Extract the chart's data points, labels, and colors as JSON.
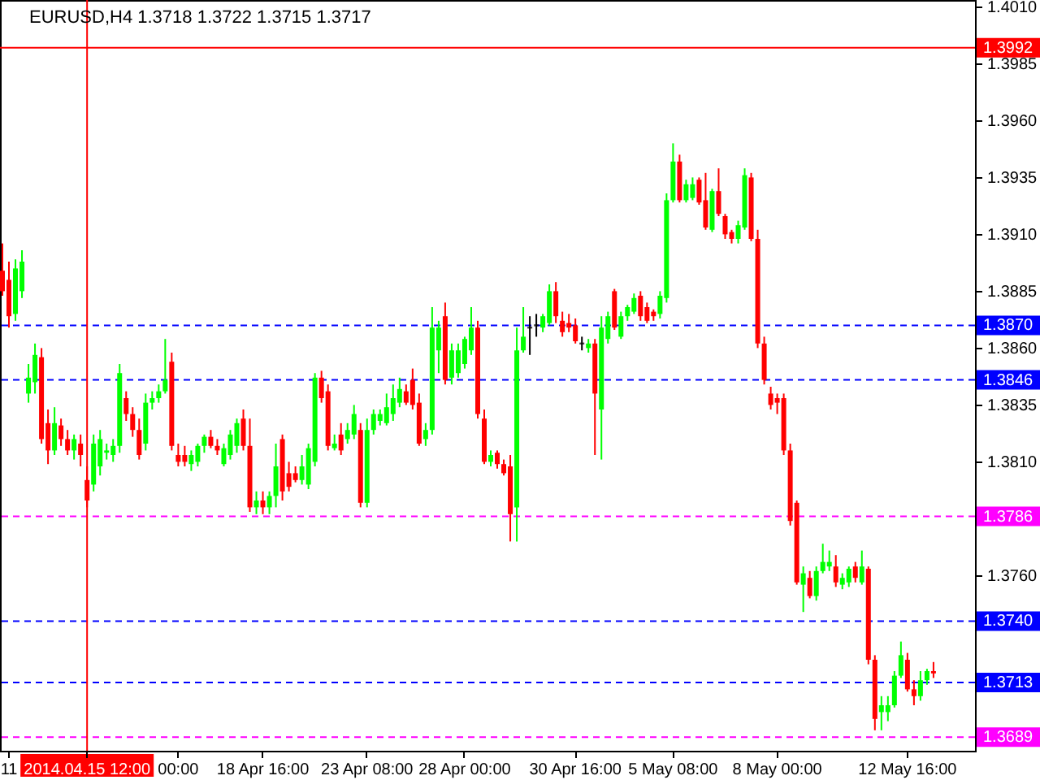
{
  "chart_data": {
    "type": "candlestick",
    "title": "EURUSD,H4  1.3718 1.3722 1.3715 1.3717",
    "categories": [
      null,
      "11",
      null,
      null,
      null,
      null,
      null,
      null,
      null,
      null,
      null,
      null,
      null,
      "2014.04.15 12:00",
      null,
      null,
      null,
      null,
      null,
      null,
      null,
      null,
      null,
      null,
      null,
      null,
      null,
      "00:00",
      null,
      null,
      null,
      null,
      null,
      null,
      null,
      null,
      null,
      null,
      null,
      null,
      "18 Apr 16:00",
      null,
      null,
      null,
      null,
      null,
      null,
      null,
      null,
      null,
      null,
      null,
      null,
      null,
      null,
      null,
      "23 Apr 08:00",
      null,
      null,
      null,
      null,
      null,
      null,
      null,
      null,
      null,
      null,
      null,
      null,
      null,
      null,
      "28 Apr 00:00",
      null,
      null,
      null,
      null,
      null,
      null,
      null,
      null,
      null,
      null,
      null,
      null,
      null,
      null,
      null,
      null,
      "30 Apr 16:00",
      null,
      null,
      null,
      null,
      null,
      null,
      null,
      null,
      null,
      null,
      null,
      null,
      null,
      null,
      "5 May 08:00",
      null,
      null,
      null,
      null,
      null,
      null,
      null,
      null,
      null,
      null,
      null,
      null,
      null,
      null,
      null,
      "8 May 00:00",
      null,
      null,
      null,
      null,
      null,
      null,
      null,
      null,
      null,
      null,
      null,
      null,
      null,
      null,
      null,
      null,
      null,
      null,
      null,
      "12 May 16:00",
      null,
      null,
      null,
      null,
      null,
      null,
      null,
      null,
      null,
      null
    ],
    "ohlc": [
      [
        1.3894,
        1.3906,
        1.3883,
        1.3885
      ],
      [
        1.389,
        1.3898,
        1.3869,
        1.3874
      ],
      [
        1.3875,
        1.3899,
        1.3872,
        1.3895
      ],
      [
        1.3885,
        1.3903,
        1.3882,
        1.3898
      ],
      [
        1.384,
        1.3853,
        1.3836,
        1.3847
      ],
      [
        1.3845,
        1.3862,
        1.384,
        1.3857
      ],
      [
        1.3856,
        1.386,
        1.3818,
        1.382
      ],
      [
        1.3827,
        1.3833,
        1.3809,
        1.3815
      ],
      [
        1.3815,
        1.3834,
        1.3813,
        1.3827
      ],
      [
        1.3826,
        1.3829,
        1.3817,
        1.382
      ],
      [
        1.382,
        1.3824,
        1.3813,
        1.3815
      ],
      [
        1.3815,
        1.3822,
        1.3811,
        1.382
      ],
      [
        1.3818,
        1.3822,
        1.3808,
        1.3813
      ],
      [
        1.3802,
        1.3808,
        1.379,
        1.3793
      ],
      [
        1.38,
        1.3822,
        1.3797,
        1.3818
      ],
      [
        1.3808,
        1.3824,
        1.3804,
        1.382
      ],
      [
        1.3814,
        1.3818,
        1.3811,
        1.3815
      ],
      [
        1.3813,
        1.382,
        1.381,
        1.3817
      ],
      [
        1.3817,
        1.3853,
        1.3814,
        1.3849
      ],
      [
        1.3838,
        1.3841,
        1.3828,
        1.3831
      ],
      [
        1.3831,
        1.3834,
        1.3821,
        1.3824
      ],
      [
        1.3824,
        1.3829,
        1.3811,
        1.3813
      ],
      [
        1.3818,
        1.384,
        1.3815,
        1.3836
      ],
      [
        1.3836,
        1.3841,
        1.3833,
        1.3838
      ],
      [
        1.3838,
        1.3844,
        1.3836,
        1.3841
      ],
      [
        1.3841,
        1.3864,
        1.384,
        1.3846
      ],
      [
        1.3854,
        1.3858,
        1.3815,
        1.3817
      ],
      [
        1.3813,
        1.3818,
        1.3808,
        1.381
      ],
      [
        1.3813,
        1.3817,
        1.3808,
        1.381
      ],
      [
        1.3809,
        1.3815,
        1.3806,
        1.3813
      ],
      [
        1.381,
        1.3818,
        1.3808,
        1.3817
      ],
      [
        1.3817,
        1.3822,
        1.3814,
        1.3821
      ],
      [
        1.3821,
        1.3824,
        1.3816,
        1.3817
      ],
      [
        1.3817,
        1.382,
        1.3813,
        1.3815
      ],
      [
        1.3809,
        1.3818,
        1.3808,
        1.3816
      ],
      [
        1.3813,
        1.3824,
        1.3811,
        1.3822
      ],
      [
        1.3817,
        1.3829,
        1.3814,
        1.3827
      ],
      [
        1.3829,
        1.3833,
        1.3815,
        1.3817
      ],
      [
        1.3817,
        1.3829,
        1.3788,
        1.379
      ],
      [
        1.379,
        1.3797,
        1.3787,
        1.3793
      ],
      [
        1.3793,
        1.3797,
        1.3787,
        1.379
      ],
      [
        1.379,
        1.3797,
        1.3787,
        1.3795
      ],
      [
        1.3795,
        1.3818,
        1.379,
        1.3808
      ],
      [
        1.382,
        1.3822,
        1.3793,
        1.3797
      ],
      [
        1.3805,
        1.381,
        1.3797,
        1.3799
      ],
      [
        1.3805,
        1.3808,
        1.3801,
        1.3802
      ],
      [
        1.3802,
        1.3813,
        1.38,
        1.3808
      ],
      [
        1.38,
        1.3818,
        1.3798,
        1.3816
      ],
      [
        1.381,
        1.3849,
        1.3808,
        1.3847
      ],
      [
        1.3847,
        1.385,
        1.3836,
        1.3838
      ],
      [
        1.3841,
        1.3844,
        1.3815,
        1.3817
      ],
      [
        1.3816,
        1.3822,
        1.3815,
        1.3818
      ],
      [
        1.3822,
        1.3827,
        1.3813,
        1.3815
      ],
      [
        1.382,
        1.3827,
        1.3818,
        1.3824
      ],
      [
        1.3822,
        1.3835,
        1.382,
        1.3831
      ],
      [
        1.3824,
        1.3827,
        1.379,
        1.3792
      ],
      [
        1.3792,
        1.3829,
        1.379,
        1.3824
      ],
      [
        1.3824,
        1.3833,
        1.3822,
        1.3831
      ],
      [
        1.3828,
        1.3833,
        1.3826,
        1.3831
      ],
      [
        1.3827,
        1.384,
        1.3826,
        1.3834
      ],
      [
        1.3831,
        1.3844,
        1.3828,
        1.3838
      ],
      [
        1.3836,
        1.3847,
        1.3834,
        1.3842
      ],
      [
        1.3841,
        1.3844,
        1.3835,
        1.3836
      ],
      [
        1.3846,
        1.3851,
        1.3833,
        1.3835
      ],
      [
        1.3836,
        1.384,
        1.3817,
        1.3818
      ],
      [
        1.382,
        1.3827,
        1.3817,
        1.3824
      ],
      [
        1.3824,
        1.3878,
        1.3822,
        1.3869
      ],
      [
        1.3859,
        1.3872,
        1.3849,
        1.3869
      ],
      [
        1.3874,
        1.388,
        1.3844,
        1.3846
      ],
      [
        1.3847,
        1.3862,
        1.3844,
        1.3859
      ],
      [
        1.3849,
        1.3862,
        1.3847,
        1.3859
      ],
      [
        1.3853,
        1.3865,
        1.3851,
        1.3864
      ],
      [
        1.3859,
        1.3878,
        1.3857,
        1.3869
      ],
      [
        1.3869,
        1.3872,
        1.3829,
        1.3831
      ],
      [
        1.3829,
        1.3833,
        1.3809,
        1.381
      ],
      [
        1.381,
        1.3815,
        1.3808,
        1.3813
      ],
      [
        1.3814,
        1.3815,
        1.3807,
        1.3809
      ],
      [
        1.3809,
        1.3811,
        1.3804,
        1.3805
      ],
      [
        1.3808,
        1.3813,
        1.3775,
        1.3787
      ],
      [
        1.379,
        1.3869,
        1.3775,
        1.3859
      ],
      [
        1.3859,
        1.3878,
        1.3858,
        1.3865
      ],
      [
        1.3869,
        1.3874,
        1.3857,
        1.3869
      ],
      [
        1.387,
        1.3875,
        1.3865,
        1.387
      ],
      [
        1.3869,
        1.3875,
        1.3867,
        1.3874
      ],
      [
        1.3871,
        1.3888,
        1.387,
        1.3885
      ],
      [
        1.3885,
        1.3889,
        1.3871,
        1.3874
      ],
      [
        1.3872,
        1.3876,
        1.3865,
        1.3867
      ],
      [
        1.3871,
        1.3875,
        1.3867,
        1.3869
      ],
      [
        1.387,
        1.3873,
        1.3862,
        1.3863
      ],
      [
        1.3862,
        1.3865,
        1.3859,
        1.3862
      ],
      [
        1.386,
        1.3864,
        1.3858,
        1.3862
      ],
      [
        1.3862,
        1.3864,
        1.3813,
        1.384
      ],
      [
        1.3833,
        1.3874,
        1.3811,
        1.3869
      ],
      [
        1.3864,
        1.3876,
        1.3862,
        1.3874
      ],
      [
        1.3885,
        1.3886,
        1.3868,
        1.3869
      ],
      [
        1.3865,
        1.3876,
        1.3864,
        1.3874
      ],
      [
        1.3874,
        1.3879,
        1.3872,
        1.3878
      ],
      [
        1.3876,
        1.3884,
        1.3875,
        1.3882
      ],
      [
        1.3883,
        1.3885,
        1.3872,
        1.3874
      ],
      [
        1.3878,
        1.388,
        1.3871,
        1.3872
      ],
      [
        1.3876,
        1.3877,
        1.3872,
        1.3874
      ],
      [
        1.3875,
        1.3885,
        1.3873,
        1.3883
      ],
      [
        1.3882,
        1.3928,
        1.388,
        1.3925
      ],
      [
        1.3925,
        1.395,
        1.3924,
        1.3942
      ],
      [
        1.3942,
        1.3945,
        1.3924,
        1.3925
      ],
      [
        1.3925,
        1.3934,
        1.3924,
        1.3932
      ],
      [
        1.3926,
        1.3935,
        1.3925,
        1.3932
      ],
      [
        1.3934,
        1.3935,
        1.3923,
        1.3924
      ],
      [
        1.3925,
        1.3937,
        1.3912,
        1.3913
      ],
      [
        1.3912,
        1.393,
        1.3911,
        1.3929
      ],
      [
        1.3929,
        1.3939,
        1.3918,
        1.3919
      ],
      [
        1.3918,
        1.3919,
        1.3908,
        1.391
      ],
      [
        1.3911,
        1.3912,
        1.3906,
        1.3908
      ],
      [
        1.3908,
        1.3916,
        1.3906,
        1.3914
      ],
      [
        1.3913,
        1.3939,
        1.3912,
        1.3936
      ],
      [
        1.3935,
        1.3937,
        1.3907,
        1.3908
      ],
      [
        1.3908,
        1.3912,
        1.386,
        1.3862
      ],
      [
        1.3862,
        1.3865,
        1.3844,
        1.3846
      ],
      [
        1.384,
        1.3843,
        1.3833,
        1.3835
      ],
      [
        1.3838,
        1.384,
        1.3831,
        1.3836
      ],
      [
        1.3838,
        1.384,
        1.3813,
        1.3815
      ],
      [
        1.3815,
        1.3818,
        1.3782,
        1.3784
      ],
      [
        1.3792,
        1.3793,
        1.3756,
        1.3757
      ],
      [
        1.3756,
        1.3764,
        1.3744,
        1.3761
      ],
      [
        1.3759,
        1.3762,
        1.375,
        1.3751
      ],
      [
        1.3751,
        1.3764,
        1.3749,
        1.3762
      ],
      [
        1.3762,
        1.3774,
        1.3761,
        1.3766
      ],
      [
        1.3764,
        1.3771,
        1.3762,
        1.3766
      ],
      [
        1.3764,
        1.3769,
        1.3755,
        1.3757
      ],
      [
        1.3756,
        1.3761,
        1.3754,
        1.3759
      ],
      [
        1.3757,
        1.3764,
        1.3755,
        1.3763
      ],
      [
        1.3764,
        1.3766,
        1.3757,
        1.3759
      ],
      [
        1.3757,
        1.3771,
        1.3756,
        1.3764
      ],
      [
        1.3763,
        1.3764,
        1.3721,
        1.3723
      ],
      [
        1.3723,
        1.3725,
        1.3692,
        1.3697
      ],
      [
        1.37,
        1.3707,
        1.3692,
        1.3703
      ],
      [
        1.37,
        1.3707,
        1.3696,
        1.3703
      ],
      [
        1.3703,
        1.3718,
        1.3702,
        1.3716
      ],
      [
        1.3716,
        1.3731,
        1.3715,
        1.3725
      ],
      [
        1.3723,
        1.3726,
        1.3709,
        1.371
      ],
      [
        1.371,
        1.3714,
        1.3703,
        1.3707
      ],
      [
        1.3707,
        1.3718,
        1.3705,
        1.3714
      ],
      [
        1.3714,
        1.3719,
        1.3712,
        1.3718
      ],
      [
        1.3718,
        1.3722,
        1.3715,
        1.3717
      ],
      null,
      null,
      null,
      null,
      null,
      null
    ],
    "colors": [
      "#ff0000",
      "#ff0000",
      "#00ff00",
      "#00ff00",
      "#00ff00",
      "#00ff00",
      "#ff0000",
      "#ff0000",
      "#00ff00",
      "#ff0000",
      "#ff0000",
      "#00ff00",
      "#ff0000",
      "#ff0000",
      "#00ff00",
      "#00ff00",
      "#00ff00",
      "#00ff00",
      "#00ff00",
      "#ff0000",
      "#ff0000",
      "#ff0000",
      "#00ff00",
      "#00ff00",
      "#00ff00",
      "#00ff00",
      "#ff0000",
      "#ff0000",
      "#ff0000",
      "#00ff00",
      "#00ff00",
      "#00ff00",
      "#ff0000",
      "#ff0000",
      "#00ff00",
      "#00ff00",
      "#00ff00",
      "#ff0000",
      "#ff0000",
      "#00ff00",
      "#ff0000",
      "#00ff00",
      "#00ff00",
      "#ff0000",
      "#ff0000",
      "#ff0000",
      "#00ff00",
      "#00ff00",
      "#00ff00",
      "#ff0000",
      "#ff0000",
      "#00ff00",
      "#ff0000",
      "#00ff00",
      "#00ff00",
      "#ff0000",
      "#00ff00",
      "#00ff00",
      "#00ff00",
      "#00ff00",
      "#00ff00",
      "#00ff00",
      "#ff0000",
      "#ff0000",
      "#ff0000",
      "#00ff00",
      "#00ff00",
      "#00ff00",
      "#ff0000",
      "#00ff00",
      "#00ff00",
      "#00ff00",
      "#00ff00",
      "#ff0000",
      "#ff0000",
      "#00ff00",
      "#ff0000",
      "#ff0000",
      "#ff0000",
      "#00ff00",
      "#00ff00",
      "#000000",
      "#000000",
      "#00ff00",
      "#00ff00",
      "#ff0000",
      "#ff0000",
      "#ff0000",
      "#ff0000",
      "#000000",
      "#00ff00",
      "#ff0000",
      "#00ff00",
      "#00ff00",
      "#ff0000",
      "#00ff00",
      "#00ff00",
      "#00ff00",
      "#ff0000",
      "#ff0000",
      "#ff0000",
      "#00ff00",
      "#00ff00",
      "#00ff00",
      "#ff0000",
      "#00ff00",
      "#00ff00",
      "#ff0000",
      "#ff0000",
      "#00ff00",
      "#ff0000",
      "#ff0000",
      "#ff0000",
      "#00ff00",
      "#00ff00",
      "#ff0000",
      "#ff0000",
      "#ff0000",
      "#ff0000",
      "#ff0000",
      "#ff0000",
      "#ff0000",
      "#ff0000",
      "#00ff00",
      "#ff0000",
      "#00ff00",
      "#00ff00",
      "#00ff00",
      "#ff0000",
      "#00ff00",
      "#00ff00",
      "#ff0000",
      "#00ff00",
      "#ff0000",
      "#ff0000",
      "#00ff00",
      "#00ff00",
      "#00ff00",
      "#00ff00",
      "#ff0000",
      "#ff0000",
      "#00ff00",
      "#00ff00",
      "#ff0000",
      null,
      null,
      null,
      null,
      null,
      null
    ],
    "ref_lines": [
      {
        "axis": "y",
        "value": 1.3992,
        "label": "1.3992",
        "color": "#ff0000",
        "line_style": "solid"
      },
      {
        "axis": "y",
        "value": 1.387,
        "label": "1.3870",
        "color": "#0000ff",
        "line_style": "dashed"
      },
      {
        "axis": "y",
        "value": 1.3846,
        "label": "1.3846",
        "color": "#0000ff",
        "line_style": "dashed"
      },
      {
        "axis": "y",
        "value": 1.3786,
        "label": "1.3786",
        "color": "#ff00ff",
        "line_style": "dashed"
      },
      {
        "axis": "y",
        "value": 1.374,
        "label": "1.3740",
        "color": "#0000ff",
        "line_style": "dashed"
      },
      {
        "axis": "y",
        "value": 1.3713,
        "label": "1.3713",
        "color": "#0000ff",
        "line_style": "dashed"
      },
      {
        "axis": "y",
        "value": 1.3689,
        "label": "1.3689",
        "color": "#ff00ff",
        "line_style": "dashed"
      },
      {
        "axis": "x",
        "value": "2014.04.15 12:00",
        "color": "#ff0000",
        "line_style": "solid"
      }
    ],
    "ylim": [
      1.3683,
      1.4013
    ],
    "yticks": [
      {
        "value": 1.401,
        "label": "1.4010"
      },
      {
        "value": 1.3985,
        "label": "1.3985"
      },
      {
        "value": 1.396,
        "label": "1.3960"
      },
      {
        "value": 1.3935,
        "label": "1.3935"
      },
      {
        "value": 1.391,
        "label": "1.3910"
      },
      {
        "value": 1.3885,
        "label": "1.3885"
      },
      {
        "value": 1.386,
        "label": "1.3860"
      },
      {
        "value": 1.3835,
        "label": "1.3835"
      },
      {
        "value": 1.381,
        "label": "1.3810"
      },
      {
        "value": 1.376,
        "label": "1.3760"
      }
    ],
    "grid": false
  }
}
